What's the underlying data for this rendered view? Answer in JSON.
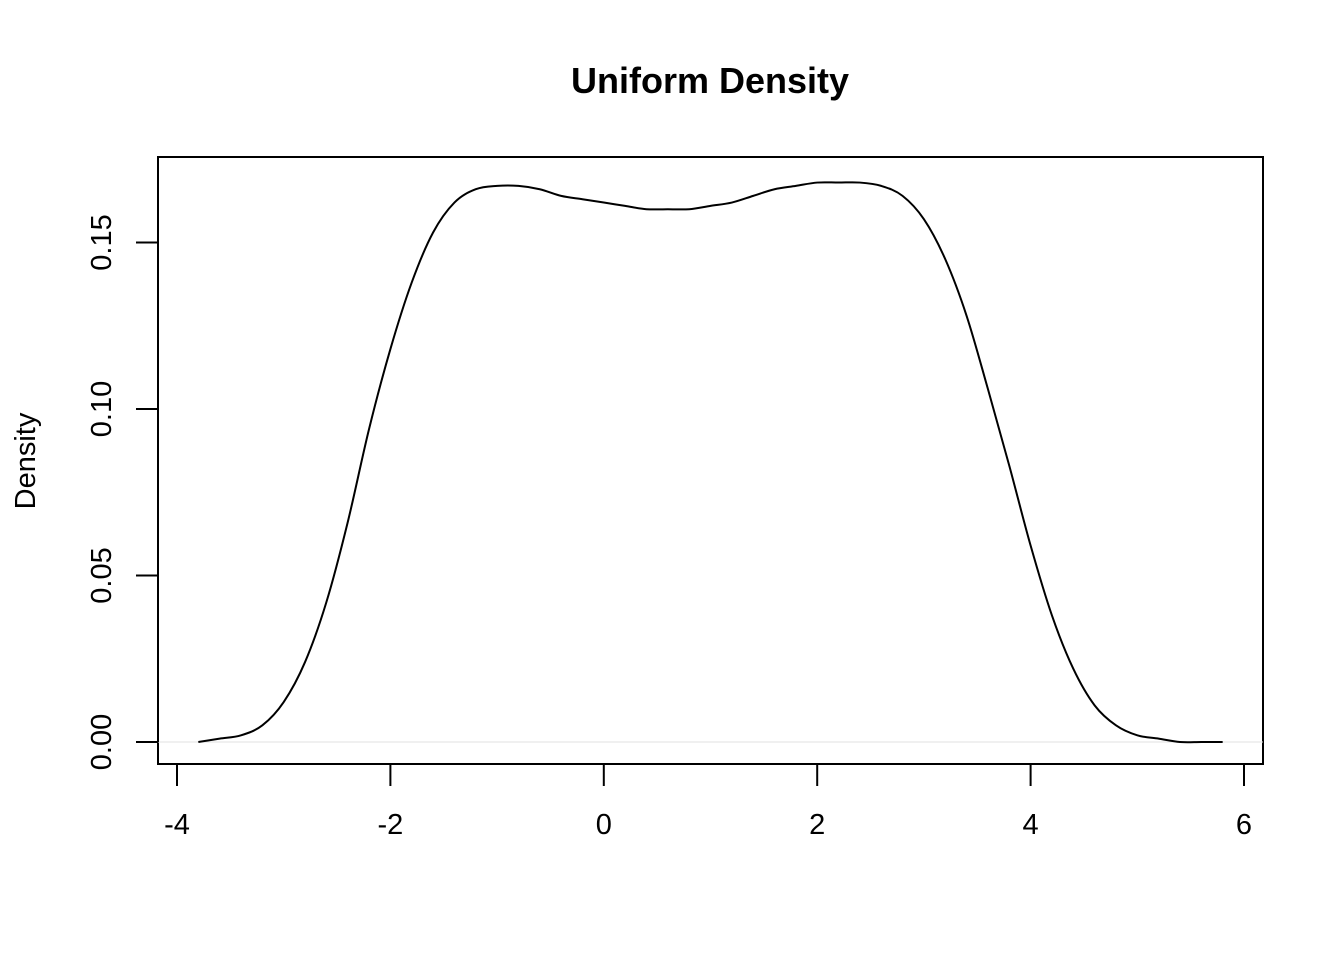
{
  "chart_data": {
    "type": "line",
    "title": "Uniform Density",
    "xlabel": "",
    "ylabel": "Density",
    "xlim": [
      -4,
      6
    ],
    "ylim": [
      0,
      0.17
    ],
    "xticks": [
      -4,
      -2,
      0,
      2,
      4,
      6
    ],
    "xtick_labels": [
      "-4",
      "-2",
      "0",
      "2",
      "4",
      "6"
    ],
    "yticks": [
      0,
      0.05,
      0.1,
      0.15
    ],
    "ytick_labels": [
      "0.00",
      "0.05",
      "0.10",
      "0.15"
    ],
    "grid": false,
    "series": [
      {
        "x": [
          -3.8,
          -3.6,
          -3.4,
          -3.2,
          -3.0,
          -2.8,
          -2.6,
          -2.4,
          -2.2,
          -2.0,
          -1.8,
          -1.6,
          -1.4,
          -1.2,
          -1.0,
          -0.8,
          -0.6,
          -0.4,
          -0.2,
          0.0,
          0.2,
          0.4,
          0.6,
          0.8,
          1.0,
          1.2,
          1.4,
          1.6,
          1.8,
          2.0,
          2.2,
          2.4,
          2.6,
          2.8,
          3.0,
          3.2,
          3.4,
          3.6,
          3.8,
          4.0,
          4.2,
          4.4,
          4.6,
          4.8,
          5.0,
          5.2,
          5.4,
          5.6,
          5.8
        ],
        "y": [
          0.0,
          0.001,
          0.002,
          0.005,
          0.012,
          0.024,
          0.042,
          0.066,
          0.094,
          0.118,
          0.138,
          0.153,
          0.162,
          0.166,
          0.167,
          0.167,
          0.166,
          0.164,
          0.163,
          0.162,
          0.161,
          0.16,
          0.16,
          0.16,
          0.161,
          0.162,
          0.164,
          0.166,
          0.167,
          0.168,
          0.168,
          0.168,
          0.167,
          0.164,
          0.157,
          0.145,
          0.128,
          0.106,
          0.083,
          0.059,
          0.038,
          0.022,
          0.011,
          0.005,
          0.002,
          0.001,
          0.0,
          0.0,
          0.0
        ]
      }
    ]
  }
}
